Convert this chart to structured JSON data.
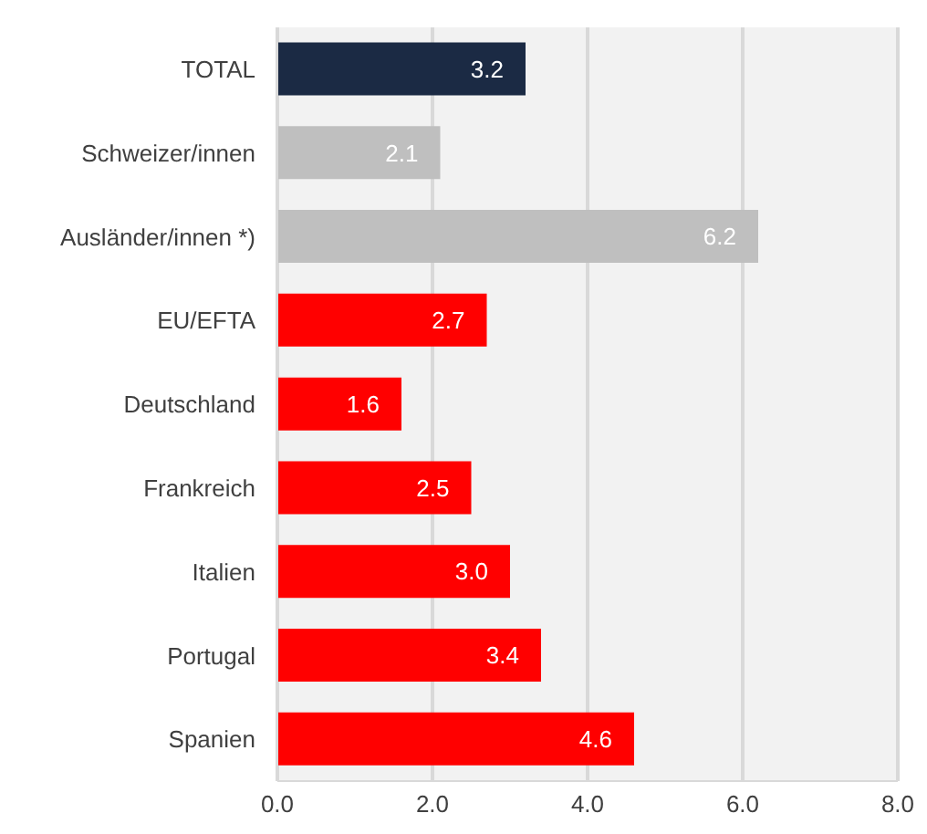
{
  "chart_data": {
    "type": "bar",
    "orientation": "horizontal",
    "categories": [
      "TOTAL",
      "Schweizer/innen",
      "Ausländer/innen *)",
      "EU/EFTA",
      "Deutschland",
      "Frankreich",
      "Italien",
      "Portugal",
      "Spanien"
    ],
    "values": [
      3.2,
      2.1,
      6.2,
      2.7,
      1.6,
      2.5,
      3.0,
      3.4,
      4.6
    ],
    "value_labels": [
      "3.2",
      "2.1",
      "6.2",
      "2.7",
      "1.6",
      "2.5",
      "3.0",
      "3.4",
      "4.6"
    ],
    "colors": [
      "#1b2a44",
      "#bfbfbf",
      "#bfbfbf",
      "#ff0000",
      "#ff0000",
      "#ff0000",
      "#ff0000",
      "#ff0000",
      "#ff0000"
    ],
    "xlim": [
      0,
      8
    ],
    "xticks": [
      {
        "value": 0,
        "label": "0.0"
      },
      {
        "value": 2,
        "label": "2.0"
      },
      {
        "value": 4,
        "label": "4.0"
      },
      {
        "value": 6,
        "label": "6.0"
      },
      {
        "value": 8,
        "label": "8.0"
      }
    ],
    "grid": "x"
  }
}
